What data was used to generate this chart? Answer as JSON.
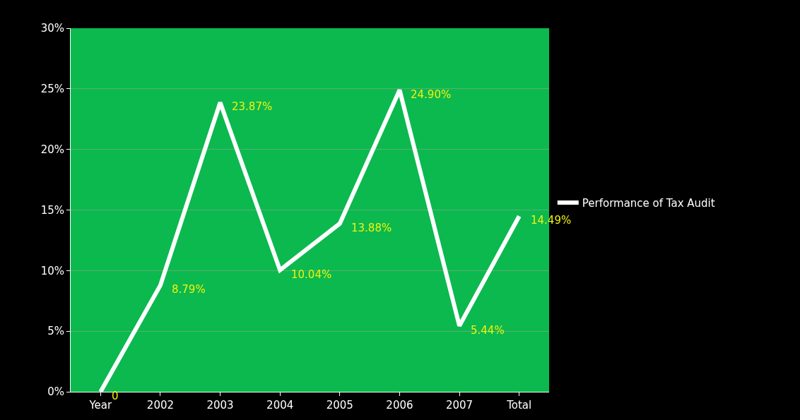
{
  "chart_data": {
    "type": "line",
    "categories": [
      "Year",
      "2002",
      "2003",
      "2004",
      "2005",
      "2006",
      "2007",
      "Total"
    ],
    "series": [
      {
        "name": "Performance of Tax Audit",
        "color": "#ffffff",
        "values": [
          0,
          8.79,
          23.87,
          10.04,
          13.88,
          24.9,
          5.44,
          14.49
        ],
        "value_labels": [
          "0",
          "8.79%",
          "23.87%",
          "10.04%",
          "13.88%",
          "24.90%",
          "5.44%",
          "14.49%"
        ]
      }
    ],
    "ylim": [
      0,
      30
    ],
    "yticks": [
      {
        "value": 0,
        "label": "0%"
      },
      {
        "value": 5,
        "label": "5%"
      },
      {
        "value": 10,
        "label": "10%"
      },
      {
        "value": 15,
        "label": "15%"
      },
      {
        "value": 20,
        "label": "20%"
      },
      {
        "value": 25,
        "label": "25%"
      },
      {
        "value": 30,
        "label": "30%"
      }
    ],
    "grid": "y",
    "legend": "right",
    "marker": "none",
    "line_style": "solid"
  }
}
